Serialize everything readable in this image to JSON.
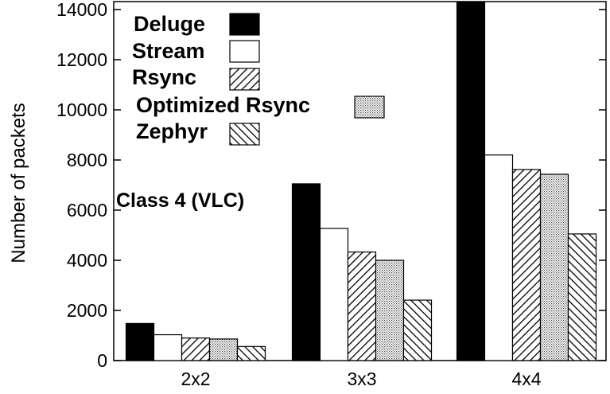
{
  "chart_data": {
    "type": "bar",
    "ylabel": "Number of packets",
    "xlabel": "",
    "ylim": [
      0,
      14000
    ],
    "yticks": [
      0,
      2000,
      4000,
      6000,
      8000,
      10000,
      12000,
      14000
    ],
    "categories": [
      "2x2",
      "3x3",
      "4x4"
    ],
    "annotation": "Class 4 (VLC)",
    "legend_position": "top-left",
    "grid": false,
    "series": [
      {
        "name": "Deluge",
        "fill": "solid-black",
        "values": [
          1480,
          7050,
          14300
        ]
      },
      {
        "name": "Stream",
        "fill": "white",
        "values": [
          1030,
          5270,
          8200
        ]
      },
      {
        "name": "Rsync",
        "fill": "diagonal-hatch",
        "values": [
          900,
          4330,
          7620
        ]
      },
      {
        "name": "Optimized Rsync",
        "fill": "dotted",
        "values": [
          860,
          4000,
          7430
        ]
      },
      {
        "name": "Zephyr",
        "fill": "reverse-diagonal-hatch",
        "values": [
          560,
          2410,
          5050
        ]
      }
    ]
  }
}
